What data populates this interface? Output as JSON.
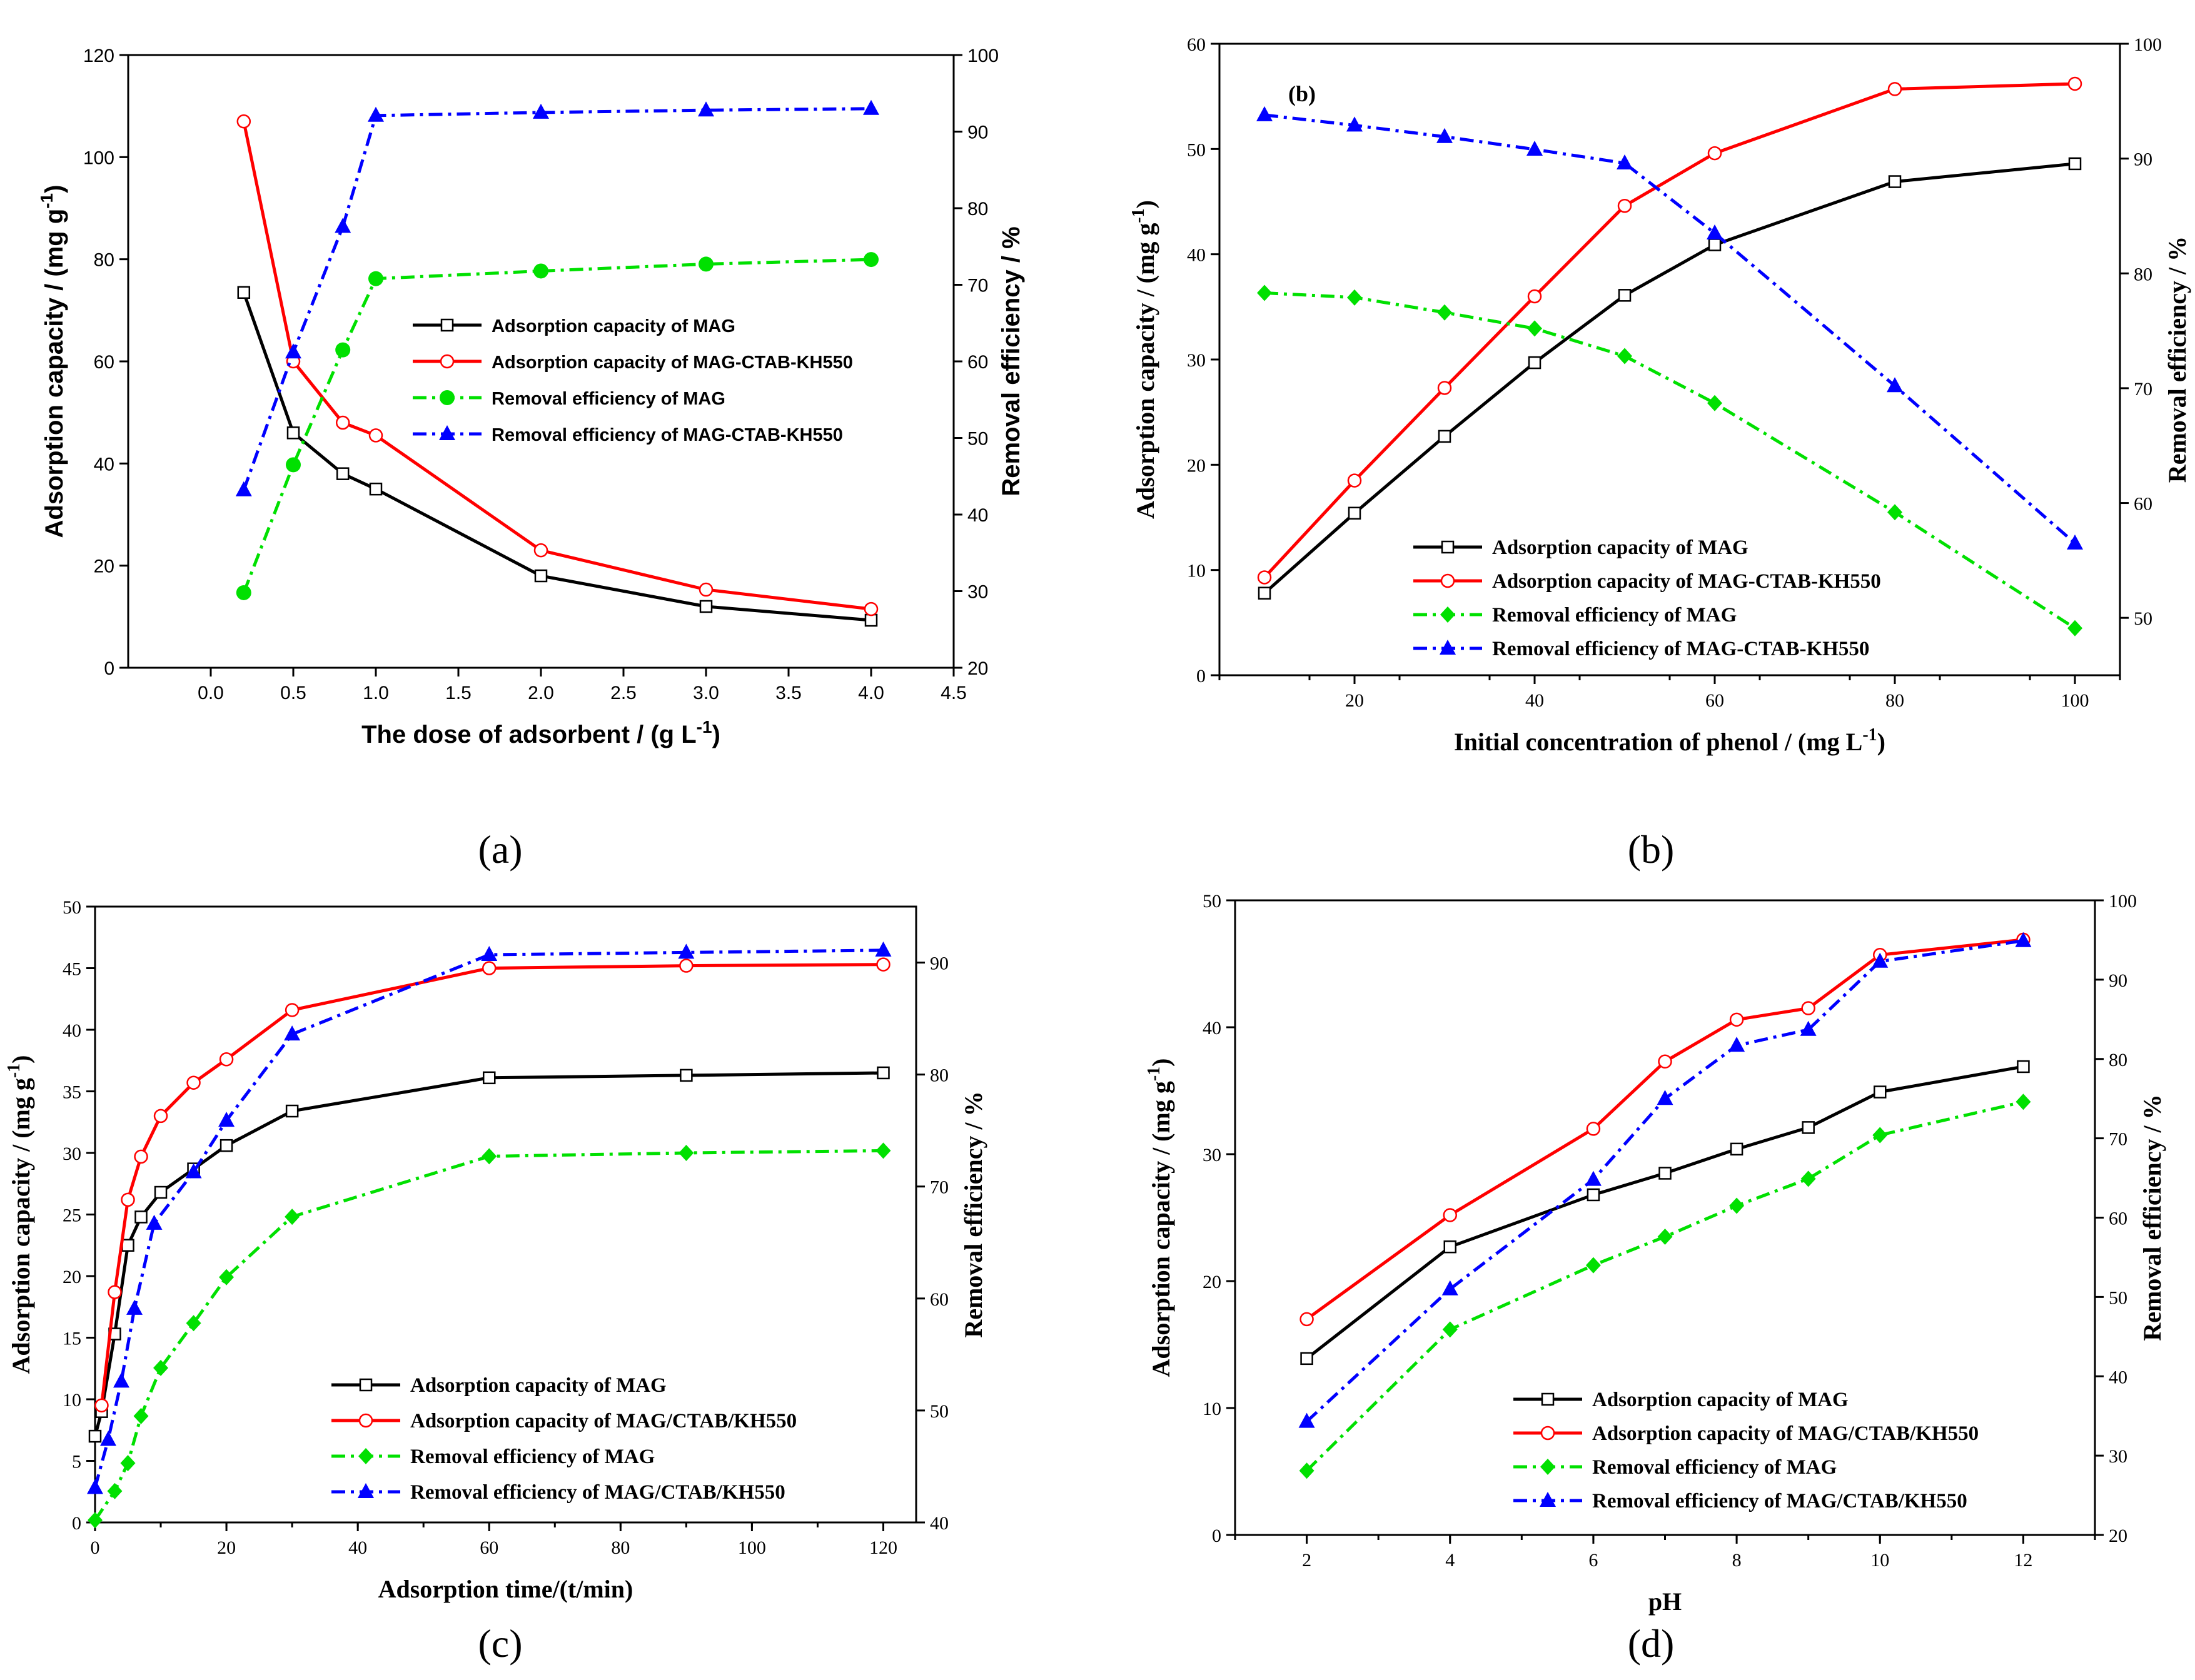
{
  "figure": {
    "captions": [
      "(a)",
      "(b)",
      "(c)",
      "(d)"
    ],
    "colors": {
      "black": "#000000",
      "red": "#ff0000",
      "green": "#00e000",
      "blue": "#0000ff"
    }
  },
  "chart_data": [
    {
      "type": "line",
      "panel": "a",
      "caption": "(a)",
      "title": "",
      "xlabel": "The dose of adsorbent / (g L-1)",
      "ylabel": "Adsorption capacity / (mg g-1)",
      "y2label": "Removal efficiency / %",
      "xlim": [
        -0.5,
        4.5
      ],
      "ylim": [
        0,
        120
      ],
      "y2lim": [
        20,
        100
      ],
      "xticks": [
        "0.0",
        "0.5",
        "1.0",
        "1.5",
        "2.0",
        "2.5",
        "3.0",
        "3.5",
        "4.0",
        "4.5"
      ],
      "yticks": [
        "0",
        "20",
        "40",
        "60",
        "80",
        "100",
        "120"
      ],
      "y2ticks": [
        "20",
        "30",
        "40",
        "50",
        "60",
        "70",
        "80",
        "90",
        "100"
      ],
      "legend_position": "center-right",
      "series": [
        {
          "name": "Adsorption capacity of MAG",
          "axis": "left",
          "color": "#000000",
          "marker": "square-open",
          "dash": "solid",
          "x": [
            0.2,
            0.5,
            0.8,
            1.0,
            2.0,
            3.0,
            4.0
          ],
          "values": [
            73.5,
            46,
            38,
            35,
            18,
            12,
            9.3
          ]
        },
        {
          "name": "Adsorption capacity of MAG-CTAB-KH550",
          "axis": "left",
          "color": "#ff0000",
          "marker": "circle-open",
          "dash": "solid",
          "x": [
            0.2,
            0.5,
            0.8,
            1.0,
            2.0,
            3.0,
            4.0
          ],
          "values": [
            107,
            60,
            48,
            45.5,
            23,
            15.3,
            11.5
          ]
        },
        {
          "name": "Removal efficiency of MAG",
          "axis": "right",
          "color": "#00e000",
          "marker": "circle-filled",
          "dash": "dashdot",
          "x": [
            0.2,
            0.5,
            0.8,
            1.0,
            2.0,
            3.0,
            4.0
          ],
          "values": [
            29.8,
            46.5,
            61.5,
            70.8,
            71.8,
            72.7,
            73.3
          ]
        },
        {
          "name": "Removal efficiency of MAG-CTAB-KH550",
          "axis": "right",
          "color": "#0000ff",
          "marker": "triangle-filled",
          "dash": "dashdot",
          "x": [
            0.2,
            0.5,
            0.8,
            1.0,
            2.0,
            3.0,
            4.0
          ],
          "values": [
            43.2,
            61.2,
            77.6,
            92.1,
            92.5,
            92.8,
            93
          ]
        }
      ]
    },
    {
      "type": "line",
      "panel": "b",
      "caption": "(b)",
      "title": "",
      "tag": "(b)",
      "xlabel": "Initial concentration of phenol / (mg L-1)",
      "ylabel": "Adsorption capacity / (mg g-1)",
      "y2label": "Removal efficiency / %",
      "xlim": [
        5,
        105
      ],
      "ylim": [
        0,
        60
      ],
      "y2lim": [
        45,
        100
      ],
      "xticks": [
        "20",
        "40",
        "60",
        "80",
        "100"
      ],
      "yticks": [
        "0",
        "10",
        "20",
        "30",
        "40",
        "50",
        "60"
      ],
      "y2ticks": [
        "50",
        "60",
        "70",
        "80",
        "90",
        "100"
      ],
      "legend_position": "bottom-left",
      "series": [
        {
          "name": "Adsorption capacity of MAG",
          "axis": "left",
          "color": "#000000",
          "marker": "square-open",
          "dash": "solid",
          "x": [
            10,
            20,
            30,
            40,
            50,
            60,
            80,
            100
          ],
          "values": [
            7.8,
            15.4,
            22.7,
            29.7,
            36.1,
            40.9,
            46.9,
            48.6
          ]
        },
        {
          "name": "Adsorption capacity of MAG-CTAB-KH550",
          "axis": "left",
          "color": "#ff0000",
          "marker": "circle-open",
          "dash": "solid",
          "x": [
            10,
            20,
            30,
            40,
            50,
            60,
            80,
            100
          ],
          "values": [
            9.3,
            18.5,
            27.3,
            36,
            44.6,
            49.6,
            55.7,
            56.2
          ]
        },
        {
          "name": "Removal efficiency of MAG",
          "axis": "right",
          "color": "#00e000",
          "marker": "diamond-filled",
          "dash": "dashdot",
          "x": [
            10,
            20,
            30,
            40,
            50,
            60,
            80,
            100
          ],
          "values": [
            78.3,
            77.9,
            76.6,
            75.2,
            72.8,
            68.7,
            59.2,
            49.1
          ]
        },
        {
          "name": "Removal efficiency of MAG-CTAB-KH550",
          "axis": "right",
          "color": "#0000ff",
          "marker": "triangle-filled",
          "dash": "dashdot",
          "x": [
            10,
            20,
            30,
            40,
            50,
            60,
            80,
            100
          ],
          "values": [
            93.8,
            92.9,
            91.9,
            90.8,
            89.6,
            83.5,
            70.2,
            56.5
          ]
        }
      ]
    },
    {
      "type": "line",
      "panel": "c",
      "caption": "(c)",
      "title": "",
      "xlabel": "Adsorption time/(t/min)",
      "ylabel": "Adsorption capacity / (mg g-1)",
      "y2label": "Removal efficiency / %",
      "xlim": [
        0,
        125
      ],
      "ylim": [
        0,
        50
      ],
      "y2lim": [
        40,
        95
      ],
      "xticks": [
        "0",
        "20",
        "40",
        "60",
        "80",
        "100",
        "120"
      ],
      "yticks": [
        "0",
        "5",
        "10",
        "15",
        "20",
        "25",
        "30",
        "35",
        "40",
        "45",
        "50"
      ],
      "y2ticks": [
        "40",
        "50",
        "60",
        "70",
        "80",
        "90"
      ],
      "legend_position": "bottom-right",
      "series": [
        {
          "name": "Adsorption capacity of MAG",
          "axis": "left",
          "color": "#000000",
          "marker": "square-open",
          "dash": "solid",
          "x": [
            0,
            1,
            3,
            5,
            7,
            10,
            15,
            20,
            30,
            60,
            90,
            120
          ],
          "values": [
            7,
            9,
            15.3,
            22.5,
            24.8,
            26.8,
            28.7,
            30.6,
            33.4,
            36.1,
            36.3,
            36.5
          ]
        },
        {
          "name": "Adsorption capacity of MAG/CTAB/KH550",
          "axis": "left",
          "color": "#ff0000",
          "marker": "circle-open",
          "dash": "solid",
          "x": [
            1,
            3,
            5,
            7,
            10,
            15,
            20,
            30,
            60,
            90,
            120
          ],
          "values": [
            9.5,
            18.7,
            26.2,
            29.7,
            33,
            35.7,
            37.6,
            41.6,
            45,
            45.2,
            45.3
          ]
        },
        {
          "name": "Removal efficiency of MAG",
          "axis": "right",
          "color": "#00e000",
          "marker": "diamond-filled",
          "dash": "dashdot",
          "x": [
            0,
            3,
            5,
            7,
            10,
            15,
            20,
            30,
            60,
            90,
            120
          ],
          "values": [
            40.2,
            42.8,
            45.3,
            49.5,
            53.8,
            57.8,
            61.9,
            67.3,
            72.7,
            73,
            73.2
          ]
        },
        {
          "name": "Removal efficiency of MAG/CTAB/KH550",
          "axis": "right",
          "color": "#0000ff",
          "marker": "triangle-filled",
          "dash": "dashdot",
          "x": [
            0,
            2,
            4,
            6,
            9,
            15,
            20,
            30,
            60,
            90,
            120
          ],
          "values": [
            43.1,
            47.4,
            52.6,
            59.1,
            66.7,
            71.3,
            75.9,
            83.6,
            90.7,
            90.9,
            91.1
          ]
        }
      ]
    },
    {
      "type": "line",
      "panel": "d",
      "caption": "(d)",
      "title": "",
      "xlabel": "pH",
      "ylabel": "Adsorption capacity / (mg g-1)",
      "y2label": "Removal efficiency / %",
      "xlim": [
        1,
        13
      ],
      "ylim": [
        0,
        50
      ],
      "y2lim": [
        20,
        100
      ],
      "xticks": [
        "2",
        "4",
        "6",
        "8",
        "10",
        "12"
      ],
      "yticks": [
        "0",
        "10",
        "20",
        "30",
        "40",
        "50"
      ],
      "y2ticks": [
        "20",
        "30",
        "40",
        "50",
        "60",
        "70",
        "80",
        "90",
        "100"
      ],
      "legend_position": "bottom-right",
      "series": [
        {
          "name": "Adsorption capacity of MAG",
          "axis": "left",
          "color": "#000000",
          "marker": "square-open",
          "dash": "solid",
          "x": [
            2,
            4,
            6,
            7,
            8,
            9,
            10,
            12
          ],
          "values": [
            13.9,
            22.7,
            26.8,
            28.5,
            30.4,
            32.1,
            34.9,
            36.9
          ]
        },
        {
          "name": "Adsorption capacity of MAG/CTAB/KH550",
          "axis": "left",
          "color": "#ff0000",
          "marker": "circle-open",
          "dash": "solid",
          "x": [
            2,
            4,
            6,
            7,
            8,
            9,
            10,
            12
          ],
          "values": [
            17,
            25.2,
            32,
            37.3,
            40.6,
            41.5,
            45.7,
            46.9
          ]
        },
        {
          "name": "Removal efficiency of MAG",
          "axis": "right",
          "color": "#00e000",
          "marker": "diamond-filled",
          "dash": "dashdot",
          "x": [
            2,
            4,
            6,
            7,
            8,
            9,
            10,
            12
          ],
          "values": [
            28.1,
            45.9,
            54,
            57.6,
            61.5,
            64.9,
            70.4,
            74.6
          ]
        },
        {
          "name": "Removal efficiency of MAG/CTAB/KH550",
          "axis": "right",
          "color": "#0000ff",
          "marker": "triangle-filled",
          "dash": "dashdot",
          "x": [
            2,
            4,
            6,
            7,
            8,
            9,
            10,
            12
          ],
          "values": [
            34.3,
            51,
            64.8,
            75,
            81.7,
            83.7,
            92.3,
            94.9
          ]
        }
      ]
    }
  ]
}
